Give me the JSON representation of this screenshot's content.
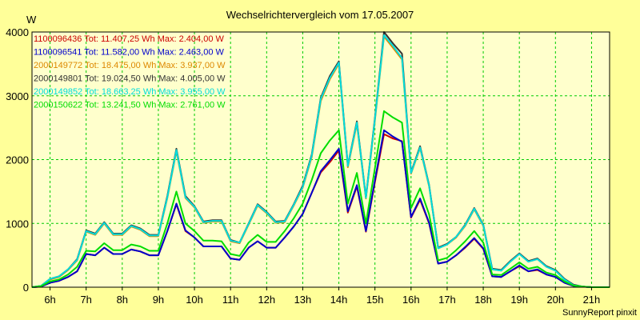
{
  "chart_data": {
    "type": "line",
    "title": "Wechselrichtervergleich vom 17.05.2007",
    "ylabel": "W",
    "xlabel": "",
    "xlim": [
      5.5,
      21.5
    ],
    "ylim": [
      0,
      4000
    ],
    "x_ticks": [
      6,
      7,
      8,
      9,
      10,
      11,
      12,
      13,
      14,
      15,
      16,
      17,
      18,
      19,
      20,
      21
    ],
    "x_tick_labels": [
      "6h",
      "7h",
      "8h",
      "9h",
      "10h",
      "11h",
      "12h",
      "13h",
      "14h",
      "15h",
      "16h",
      "17h",
      "18h",
      "19h",
      "20h",
      "21h"
    ],
    "y_ticks": [
      0,
      1000,
      2000,
      3000,
      4000
    ],
    "y_tick_labels": [
      "0",
      "1000",
      "2000",
      "3000",
      "4000"
    ],
    "grid": true,
    "legend_position": "top-left",
    "footer": "SunnyReport pinxit",
    "x": [
      5.5,
      5.75,
      6.0,
      6.25,
      6.5,
      6.75,
      7.0,
      7.25,
      7.5,
      7.75,
      8.0,
      8.25,
      8.5,
      8.75,
      9.0,
      9.25,
      9.5,
      9.75,
      10.0,
      10.25,
      10.5,
      10.75,
      11.0,
      11.25,
      11.5,
      11.75,
      12.0,
      12.25,
      12.5,
      12.75,
      13.0,
      13.25,
      13.5,
      13.75,
      14.0,
      14.25,
      14.5,
      14.75,
      15.0,
      15.25,
      15.5,
      15.75,
      16.0,
      16.25,
      16.5,
      16.75,
      17.0,
      17.25,
      17.5,
      17.75,
      18.0,
      18.25,
      18.5,
      18.75,
      19.0,
      19.25,
      19.5,
      19.75,
      20.0,
      20.25,
      20.5,
      20.75,
      21.0,
      21.25,
      21.5
    ],
    "series": [
      {
        "name": "1100096436 Tot: 11.407,25 Wh Max: 2.404,00 W",
        "color": "#cc0000",
        "values": [
          0,
          10,
          70,
          100,
          160,
          250,
          520,
          500,
          620,
          520,
          520,
          590,
          560,
          500,
          500,
          880,
          1300,
          880,
          780,
          640,
          640,
          640,
          450,
          430,
          620,
          720,
          620,
          620,
          780,
          950,
          1150,
          1480,
          1800,
          1960,
          2140,
          1170,
          1580,
          870,
          1650,
          2400,
          2330,
          2290,
          1090,
          1370,
          1000,
          370,
          400,
          500,
          620,
          760,
          600,
          170,
          160,
          250,
          330,
          250,
          270,
          200,
          160,
          70,
          20,
          10,
          0,
          0,
          0
        ]
      },
      {
        "name": "1100096541 Tot: 11.582,00 Wh Max: 2.463,00 W",
        "color": "#0000cc",
        "values": [
          0,
          10,
          70,
          100,
          160,
          250,
          520,
          500,
          620,
          520,
          520,
          590,
          560,
          500,
          500,
          880,
          1310,
          890,
          780,
          640,
          640,
          640,
          450,
          430,
          620,
          720,
          620,
          620,
          780,
          950,
          1150,
          1480,
          1820,
          1990,
          2170,
          1190,
          1600,
          880,
          1680,
          2460,
          2360,
          2280,
          1100,
          1390,
          1010,
          370,
          400,
          500,
          630,
          770,
          610,
          170,
          160,
          250,
          340,
          250,
          280,
          200,
          160,
          70,
          20,
          10,
          0,
          0,
          0
        ]
      },
      {
        "name": "2000149772 Tot: 18.475,00 Wh Max: 3.937,00 W",
        "color": "#dd8800",
        "values": [
          0,
          20,
          120,
          160,
          270,
          420,
          870,
          820,
          1000,
          820,
          820,
          950,
          900,
          800,
          800,
          1400,
          2130,
          1400,
          1250,
          1010,
          1030,
          1030,
          720,
          690,
          980,
          1280,
          1160,
          1010,
          1020,
          1280,
          1560,
          2040,
          2920,
          3260,
          3500,
          1880,
          2560,
          1390,
          2620,
          3930,
          3750,
          3570,
          1780,
          2180,
          1580,
          610,
          670,
          780,
          960,
          1220,
          960,
          280,
          260,
          400,
          520,
          400,
          440,
          320,
          260,
          120,
          30,
          10,
          0,
          0,
          0
        ]
      },
      {
        "name": "2000149801 Tot: 19.024,50 Wh Max: 4.005,00 W",
        "color": "#333333",
        "values": [
          0,
          20,
          130,
          170,
          280,
          440,
          890,
          840,
          1020,
          840,
          840,
          970,
          920,
          820,
          820,
          1430,
          2170,
          1430,
          1270,
          1030,
          1050,
          1050,
          740,
          700,
          1000,
          1300,
          1180,
          1030,
          1040,
          1300,
          1590,
          2080,
          2970,
          3310,
          3540,
          1910,
          2600,
          1410,
          2660,
          4000,
          3820,
          3660,
          1800,
          2210,
          1600,
          620,
          680,
          790,
          980,
          1240,
          980,
          290,
          270,
          410,
          530,
          410,
          450,
          330,
          270,
          130,
          40,
          10,
          0,
          0,
          0
        ]
      },
      {
        "name": "2000149852 Tot: 18.663,25 Wh Max: 3.955,00 W",
        "color": "#00dddd",
        "values": [
          0,
          20,
          130,
          170,
          280,
          430,
          880,
          830,
          1010,
          830,
          830,
          960,
          910,
          810,
          810,
          1410,
          2150,
          1410,
          1260,
          1020,
          1040,
          1040,
          730,
          700,
          990,
          1290,
          1170,
          1020,
          1030,
          1290,
          1570,
          2060,
          2950,
          3280,
          3520,
          1900,
          2580,
          1400,
          2640,
          3950,
          3780,
          3590,
          1790,
          2190,
          1590,
          610,
          670,
          790,
          970,
          1230,
          970,
          280,
          260,
          400,
          520,
          400,
          440,
          320,
          260,
          120,
          30,
          10,
          0,
          0,
          0
        ]
      },
      {
        "name": "2000150622 Tot: 13.241,50 Wh Max: 2.761,00 W",
        "color": "#00dd00",
        "values": [
          0,
          15,
          90,
          120,
          200,
          320,
          570,
          560,
          690,
          580,
          580,
          670,
          640,
          570,
          570,
          1000,
          1500,
          1000,
          880,
          730,
          730,
          720,
          520,
          490,
          700,
          820,
          710,
          710,
          880,
          1080,
          1310,
          1680,
          2100,
          2300,
          2460,
          1310,
          1790,
          1000,
          1870,
          2760,
          2660,
          2580,
          1240,
          1550,
          1140,
          420,
          460,
          580,
          720,
          880,
          700,
          200,
          190,
          290,
          390,
          290,
          320,
          230,
          190,
          90,
          25,
          10,
          0,
          0,
          0
        ]
      }
    ]
  }
}
